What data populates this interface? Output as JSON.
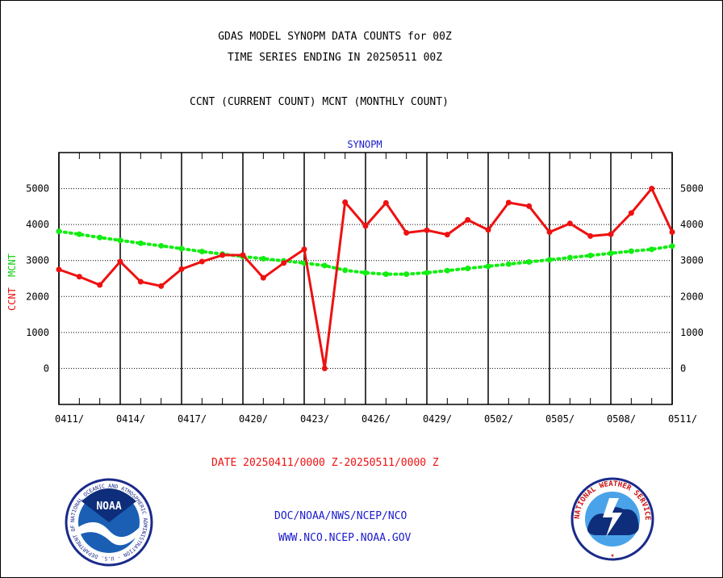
{
  "header": {
    "title": "GDAS MODEL SYNOPM DATA COUNTS for 00Z",
    "subtitle": "TIME SERIES ENDING IN 20250511 00Z",
    "legend_line": "CCNT (CURRENT COUNT) MCNT (MONTHLY COUNT)"
  },
  "footer": {
    "date_range": "DATE 20250411/0000 Z-20250511/0000 Z",
    "org": "DOC/NOAA/NWS/NCEP/NCO",
    "url": "WWW.NCO.NCEP.NOAA.GOV",
    "noaa_logo_text": "NOAA",
    "noaa_ring_text": "NATIONAL OCEANIC AND ATMOSPHERIC ADMINISTRATION · U.S. DEPARTMENT OF COMMERCE",
    "nws_ring_text": "NATIONAL WEATHER SERVICE"
  },
  "colors": {
    "ccnt": "#ee1111",
    "mcnt": "#11ee11",
    "title": "#000000",
    "blue_text": "#1a1acc",
    "date_text": "#ee1111"
  },
  "chart_data": {
    "type": "line",
    "title": "SYNOPM",
    "ylabel_left": [
      "CCNT",
      "MCNT"
    ],
    "ylim": [
      -1000,
      6000
    ],
    "yticks": [
      0,
      1000,
      2000,
      3000,
      4000,
      5000
    ],
    "xlim": [
      0,
      30
    ],
    "xticks": [
      {
        "x": 0,
        "label": "0411/"
      },
      {
        "x": 3,
        "label": "0414/"
      },
      {
        "x": 6,
        "label": "0417/"
      },
      {
        "x": 9,
        "label": "0420/"
      },
      {
        "x": 12,
        "label": "0423/"
      },
      {
        "x": 15,
        "label": "0426/"
      },
      {
        "x": 18,
        "label": "0429/"
      },
      {
        "x": 21,
        "label": "0502/"
      },
      {
        "x": 24,
        "label": "0505/"
      },
      {
        "x": 27,
        "label": "0508/"
      },
      {
        "x": 30,
        "label": "0511/"
      }
    ],
    "series": [
      {
        "name": "CCNT",
        "style": "solid",
        "values": [
          2750,
          2550,
          2320,
          2970,
          2410,
          2290,
          2760,
          2970,
          3150,
          3150,
          2520,
          2930,
          3310,
          0,
          4620,
          3960,
          4600,
          3770,
          3840,
          3720,
          4130,
          3850,
          4610,
          4510,
          3790,
          4030,
          3680,
          3730,
          4320,
          5000,
          3790
        ]
      },
      {
        "name": "MCNT",
        "style": "dotted",
        "values": [
          3810,
          3730,
          3640,
          3560,
          3480,
          3410,
          3330,
          3250,
          3180,
          3110,
          3050,
          2990,
          2930,
          2860,
          2730,
          2660,
          2620,
          2620,
          2660,
          2720,
          2780,
          2840,
          2900,
          2960,
          3020,
          3080,
          3140,
          3200,
          3260,
          3310,
          3400
        ]
      }
    ]
  }
}
